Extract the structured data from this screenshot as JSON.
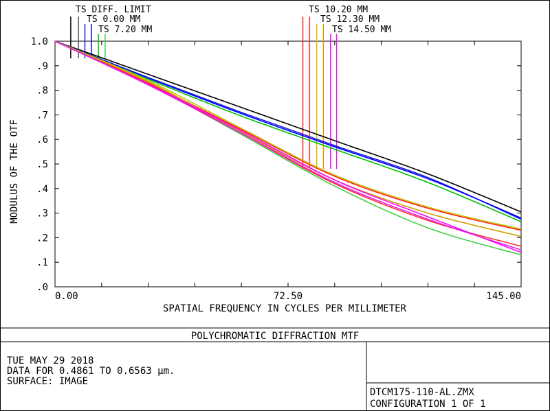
{
  "chart_data": {
    "type": "line",
    "title": "POLYCHROMATIC DIFFRACTION MTF",
    "xlabel": "SPATIAL FREQUENCY IN CYCLES PER MILLIMETER",
    "ylabel": "MODULUS OF THE OTF",
    "xlim": [
      0,
      145
    ],
    "ylim": [
      0,
      1
    ],
    "x_tick_labels": [
      "0.00",
      "72.50",
      "145.00"
    ],
    "y_tick_labels": [
      "1.0",
      ".9",
      ".8",
      ".7",
      ".6",
      ".5",
      ".4",
      ".3",
      ".2",
      ".1",
      ".0"
    ],
    "grid": false,
    "legend_top_left": [
      "TS DIFF. LIMIT",
      "TS 0.00 MM",
      "TS 7.20 MM"
    ],
    "legend_top_right": [
      "TS 10.20 MM",
      "TS 12.30 MM",
      "TS 14.50 MM"
    ],
    "series": [
      {
        "name": "DIFF. LIMIT",
        "color": "#000000",
        "x": [
          0,
          29,
          58,
          87,
          116,
          145
        ],
        "values": [
          1.0,
          0.865,
          0.73,
          0.595,
          0.46,
          0.305
        ]
      },
      {
        "name": "0.00 MM T",
        "color": "#2020e0",
        "x": [
          0,
          29,
          58,
          87,
          116,
          145
        ],
        "values": [
          1.0,
          0.852,
          0.71,
          0.575,
          0.445,
          0.275
        ]
      },
      {
        "name": "0.00 MM S",
        "color": "#0000ff",
        "x": [
          0,
          29,
          58,
          87,
          116,
          145
        ],
        "values": [
          1.0,
          0.85,
          0.705,
          0.57,
          0.44,
          0.28
        ]
      },
      {
        "name": "7.20 MM T",
        "color": "#00c000",
        "x": [
          0,
          29,
          58,
          87,
          116,
          145
        ],
        "values": [
          1.0,
          0.845,
          0.695,
          0.56,
          0.425,
          0.265
        ]
      },
      {
        "name": "7.20 MM S",
        "color": "#40d040",
        "x": [
          0,
          29,
          58,
          87,
          116,
          145
        ],
        "values": [
          1.0,
          0.825,
          0.62,
          0.41,
          0.24,
          0.13
        ]
      },
      {
        "name": "10.20 MM T",
        "color": "#ff2020",
        "x": [
          0,
          29,
          58,
          87,
          116,
          145
        ],
        "values": [
          1.0,
          0.83,
          0.64,
          0.45,
          0.32,
          0.23
        ]
      },
      {
        "name": "10.20 MM S",
        "color": "#ff3030",
        "x": [
          0,
          29,
          58,
          87,
          116,
          145
        ],
        "values": [
          1.0,
          0.828,
          0.625,
          0.42,
          0.27,
          0.165
        ]
      },
      {
        "name": "12.30 MM T",
        "color": "#c8c000",
        "x": [
          0,
          29,
          58,
          87,
          116,
          145
        ],
        "values": [
          1.0,
          0.84,
          0.645,
          0.455,
          0.325,
          0.235
        ]
      },
      {
        "name": "12.30 MM S",
        "color": "#d0a000",
        "x": [
          0,
          29,
          58,
          87,
          116,
          145
        ],
        "values": [
          1.0,
          0.835,
          0.63,
          0.435,
          0.3,
          0.205
        ]
      },
      {
        "name": "14.50 MM T",
        "color": "#ff00ff",
        "x": [
          0,
          29,
          58,
          87,
          116,
          145
        ],
        "values": [
          1.0,
          0.825,
          0.635,
          0.435,
          0.285,
          0.14
        ]
      },
      {
        "name": "14.50 MM S",
        "color": "#e020e0",
        "x": [
          0,
          29,
          58,
          87,
          116,
          145
        ],
        "values": [
          1.0,
          0.822,
          0.625,
          0.425,
          0.275,
          0.15
        ]
      }
    ]
  },
  "footer": {
    "title": "POLYCHROMATIC DIFFRACTION MTF",
    "date": "TUE MAY 29 2018",
    "data_range": "DATA FOR 0.4861 TO 0.6563 µm.",
    "surface": "SURFACE: IMAGE",
    "filename": "DTCM175-110-AL.ZMX",
    "configuration": "CONFIGURATION 1 OF 1"
  },
  "legend_lines": {
    "left": [
      {
        "color": "#000000",
        "x": 4.9,
        "top": 1.1
      },
      {
        "color": "#555555",
        "x": 7.3,
        "top": 1.1
      },
      {
        "color": "#2020e0",
        "x": 9.3,
        "top": 1.07
      },
      {
        "color": "#0000ff",
        "x": 11.3,
        "top": 1.07
      },
      {
        "color": "#00c000",
        "x": 13.5,
        "top": 1.03
      },
      {
        "color": "#40d040",
        "x": 15.6,
        "top": 1.03
      }
    ],
    "right": [
      {
        "color": "#ff2020",
        "x": 77.1,
        "top": 1.1
      },
      {
        "color": "#ff3030",
        "x": 79.2,
        "top": 1.1
      },
      {
        "color": "#c8c000",
        "x": 81.4,
        "top": 1.07
      },
      {
        "color": "#d0a000",
        "x": 83.5,
        "top": 1.07
      },
      {
        "color": "#ff00ff",
        "x": 85.7,
        "top": 1.03
      },
      {
        "color": "#e020e0",
        "x": 87.6,
        "top": 1.03
      }
    ]
  }
}
